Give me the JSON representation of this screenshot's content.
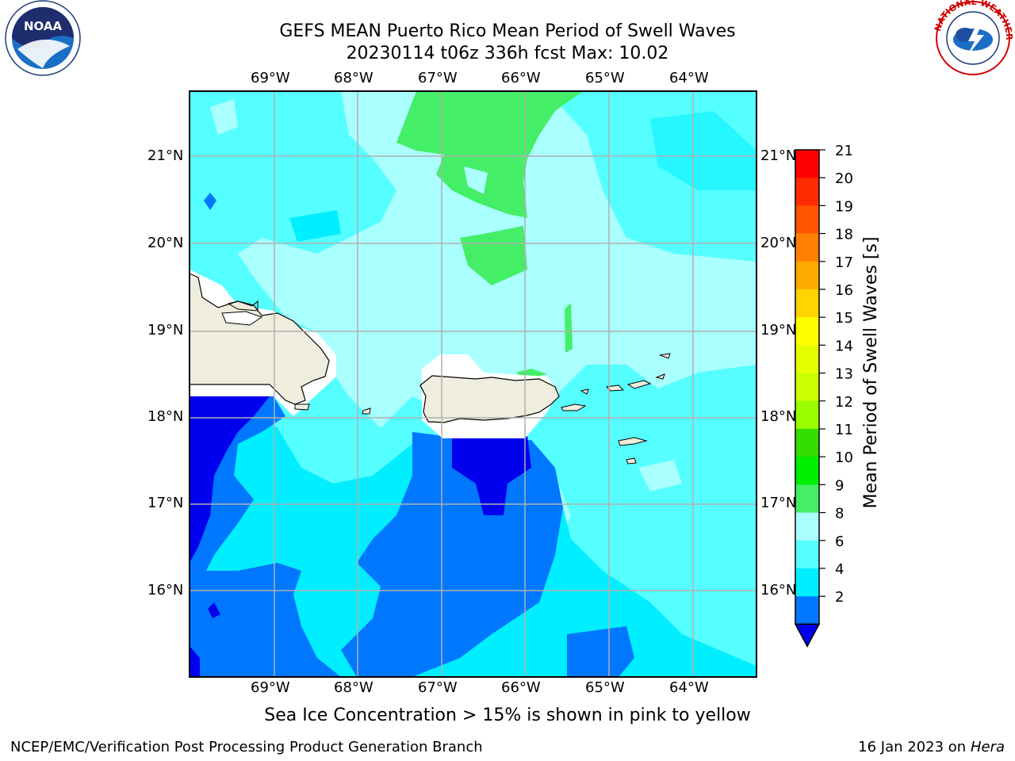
{
  "title": {
    "line1": "GEFS MEAN Puerto Rico Mean Period of Swell Waves",
    "line2": "20230114 t06z 336h fcst   Max: 10.02"
  },
  "map": {
    "region": "Puerto Rico",
    "lon_ticks": [
      "69°W",
      "68°W",
      "67°W",
      "66°W",
      "65°W",
      "64°W"
    ],
    "lat_ticks": [
      "21°N",
      "20°N",
      "19°N",
      "18°N",
      "17°N",
      "16°N"
    ],
    "land_color": "#efedde",
    "gridline_color": "#b0b0b0"
  },
  "colorbar": {
    "label": "Mean Period of Swell Waves [s]",
    "ticks": [
      "21",
      "20",
      "19",
      "18",
      "17",
      "16",
      "15",
      "14",
      "13",
      "12",
      "11",
      "10",
      "9",
      "8",
      "6",
      "4",
      "2"
    ],
    "colors": [
      "#ff0000",
      "#ff2a00",
      "#ff5500",
      "#ff8000",
      "#ffaa00",
      "#ffd400",
      "#ffff00",
      "#e6ff00",
      "#ccff00",
      "#99ff00",
      "#33dd00",
      "#00ee00",
      "#44ee66",
      "#aaffff",
      "#55ffff",
      "#00eeff",
      "#0077ff"
    ],
    "under_color": "#0000ee"
  },
  "note": "Sea Ice Concentration > 15% is shown in pink to yellow",
  "footer": {
    "left": "NCEP/EMC/Verification Post Processing Product Generation Branch",
    "date": "16 Jan 2023 on ",
    "host": "Hera"
  },
  "logos": {
    "left_text": "NOAA",
    "right_text": "NATIONAL WEATHER SERVICE"
  }
}
